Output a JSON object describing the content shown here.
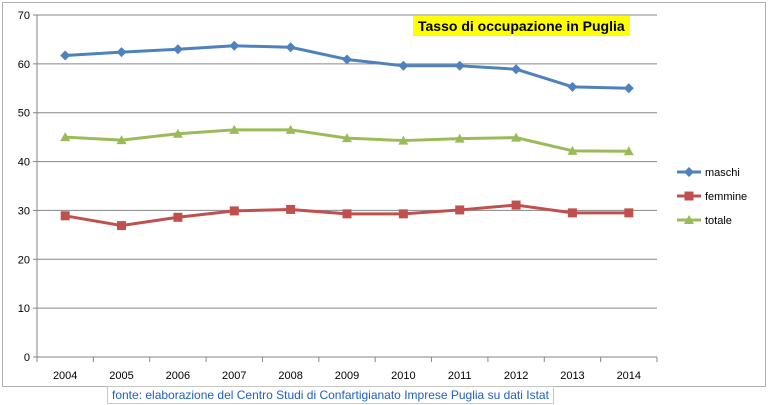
{
  "chart_data": {
    "type": "line",
    "title": "Tasso di occupazione in Puglia",
    "categories": [
      "2004",
      "2005",
      "2006",
      "2007",
      "2008",
      "2009",
      "2010",
      "2011",
      "2012",
      "2013",
      "2014"
    ],
    "ylim": [
      0,
      70
    ],
    "yticks": [
      0,
      10,
      20,
      30,
      40,
      50,
      60,
      70
    ],
    "grid": true,
    "legend_position": "right",
    "series": [
      {
        "name": "maschi",
        "color": "#4f81bd",
        "marker": "diamond",
        "values": [
          61.7,
          62.4,
          63.0,
          63.7,
          63.4,
          60.9,
          59.6,
          59.6,
          58.9,
          55.3,
          55.0
        ]
      },
      {
        "name": "femmine",
        "color": "#c0504d",
        "marker": "square",
        "values": [
          28.9,
          26.9,
          28.6,
          29.9,
          30.2,
          29.3,
          29.3,
          30.1,
          31.1,
          29.5,
          29.5
        ]
      },
      {
        "name": "totale",
        "color": "#9bbb59",
        "marker": "triangle",
        "values": [
          45.0,
          44.4,
          45.7,
          46.5,
          46.5,
          44.8,
          44.3,
          44.7,
          44.9,
          42.2,
          42.1
        ]
      }
    ]
  },
  "source_note": "fonte: elaborazione del Centro Studi di Confartigianato Imprese Puglia su dati Istat"
}
